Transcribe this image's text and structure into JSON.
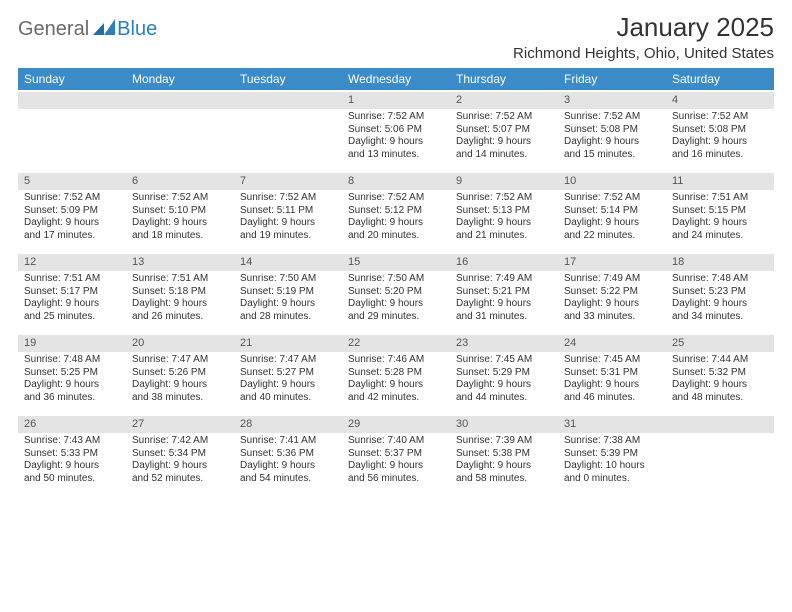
{
  "brand": {
    "text_general": "General",
    "text_blue": "Blue",
    "flag_bg": "#2a7fbf"
  },
  "header": {
    "title": "January 2025",
    "location": "Richmond Heights, Ohio, United States"
  },
  "calendar": {
    "header_bg": "#3b8bc8",
    "header_text_color": "#ffffff",
    "daynum_bg": "#e4e4e4",
    "cell_text_color": "#333333",
    "background": "#ffffff",
    "font_size_header": 12,
    "font_size_body": 10,
    "day_names": [
      "Sunday",
      "Monday",
      "Tuesday",
      "Wednesday",
      "Thursday",
      "Friday",
      "Saturday"
    ],
    "weeks": [
      [
        {
          "empty": true
        },
        {
          "empty": true
        },
        {
          "empty": true
        },
        {
          "num": "1",
          "l1": "Sunrise: 7:52 AM",
          "l2": "Sunset: 5:06 PM",
          "l3": "Daylight: 9 hours",
          "l4": "and 13 minutes."
        },
        {
          "num": "2",
          "l1": "Sunrise: 7:52 AM",
          "l2": "Sunset: 5:07 PM",
          "l3": "Daylight: 9 hours",
          "l4": "and 14 minutes."
        },
        {
          "num": "3",
          "l1": "Sunrise: 7:52 AM",
          "l2": "Sunset: 5:08 PM",
          "l3": "Daylight: 9 hours",
          "l4": "and 15 minutes."
        },
        {
          "num": "4",
          "l1": "Sunrise: 7:52 AM",
          "l2": "Sunset: 5:08 PM",
          "l3": "Daylight: 9 hours",
          "l4": "and 16 minutes."
        }
      ],
      [
        {
          "num": "5",
          "l1": "Sunrise: 7:52 AM",
          "l2": "Sunset: 5:09 PM",
          "l3": "Daylight: 9 hours",
          "l4": "and 17 minutes."
        },
        {
          "num": "6",
          "l1": "Sunrise: 7:52 AM",
          "l2": "Sunset: 5:10 PM",
          "l3": "Daylight: 9 hours",
          "l4": "and 18 minutes."
        },
        {
          "num": "7",
          "l1": "Sunrise: 7:52 AM",
          "l2": "Sunset: 5:11 PM",
          "l3": "Daylight: 9 hours",
          "l4": "and 19 minutes."
        },
        {
          "num": "8",
          "l1": "Sunrise: 7:52 AM",
          "l2": "Sunset: 5:12 PM",
          "l3": "Daylight: 9 hours",
          "l4": "and 20 minutes."
        },
        {
          "num": "9",
          "l1": "Sunrise: 7:52 AM",
          "l2": "Sunset: 5:13 PM",
          "l3": "Daylight: 9 hours",
          "l4": "and 21 minutes."
        },
        {
          "num": "10",
          "l1": "Sunrise: 7:52 AM",
          "l2": "Sunset: 5:14 PM",
          "l3": "Daylight: 9 hours",
          "l4": "and 22 minutes."
        },
        {
          "num": "11",
          "l1": "Sunrise: 7:51 AM",
          "l2": "Sunset: 5:15 PM",
          "l3": "Daylight: 9 hours",
          "l4": "and 24 minutes."
        }
      ],
      [
        {
          "num": "12",
          "l1": "Sunrise: 7:51 AM",
          "l2": "Sunset: 5:17 PM",
          "l3": "Daylight: 9 hours",
          "l4": "and 25 minutes."
        },
        {
          "num": "13",
          "l1": "Sunrise: 7:51 AM",
          "l2": "Sunset: 5:18 PM",
          "l3": "Daylight: 9 hours",
          "l4": "and 26 minutes."
        },
        {
          "num": "14",
          "l1": "Sunrise: 7:50 AM",
          "l2": "Sunset: 5:19 PM",
          "l3": "Daylight: 9 hours",
          "l4": "and 28 minutes."
        },
        {
          "num": "15",
          "l1": "Sunrise: 7:50 AM",
          "l2": "Sunset: 5:20 PM",
          "l3": "Daylight: 9 hours",
          "l4": "and 29 minutes."
        },
        {
          "num": "16",
          "l1": "Sunrise: 7:49 AM",
          "l2": "Sunset: 5:21 PM",
          "l3": "Daylight: 9 hours",
          "l4": "and 31 minutes."
        },
        {
          "num": "17",
          "l1": "Sunrise: 7:49 AM",
          "l2": "Sunset: 5:22 PM",
          "l3": "Daylight: 9 hours",
          "l4": "and 33 minutes."
        },
        {
          "num": "18",
          "l1": "Sunrise: 7:48 AM",
          "l2": "Sunset: 5:23 PM",
          "l3": "Daylight: 9 hours",
          "l4": "and 34 minutes."
        }
      ],
      [
        {
          "num": "19",
          "l1": "Sunrise: 7:48 AM",
          "l2": "Sunset: 5:25 PM",
          "l3": "Daylight: 9 hours",
          "l4": "and 36 minutes."
        },
        {
          "num": "20",
          "l1": "Sunrise: 7:47 AM",
          "l2": "Sunset: 5:26 PM",
          "l3": "Daylight: 9 hours",
          "l4": "and 38 minutes."
        },
        {
          "num": "21",
          "l1": "Sunrise: 7:47 AM",
          "l2": "Sunset: 5:27 PM",
          "l3": "Daylight: 9 hours",
          "l4": "and 40 minutes."
        },
        {
          "num": "22",
          "l1": "Sunrise: 7:46 AM",
          "l2": "Sunset: 5:28 PM",
          "l3": "Daylight: 9 hours",
          "l4": "and 42 minutes."
        },
        {
          "num": "23",
          "l1": "Sunrise: 7:45 AM",
          "l2": "Sunset: 5:29 PM",
          "l3": "Daylight: 9 hours",
          "l4": "and 44 minutes."
        },
        {
          "num": "24",
          "l1": "Sunrise: 7:45 AM",
          "l2": "Sunset: 5:31 PM",
          "l3": "Daylight: 9 hours",
          "l4": "and 46 minutes."
        },
        {
          "num": "25",
          "l1": "Sunrise: 7:44 AM",
          "l2": "Sunset: 5:32 PM",
          "l3": "Daylight: 9 hours",
          "l4": "and 48 minutes."
        }
      ],
      [
        {
          "num": "26",
          "l1": "Sunrise: 7:43 AM",
          "l2": "Sunset: 5:33 PM",
          "l3": "Daylight: 9 hours",
          "l4": "and 50 minutes."
        },
        {
          "num": "27",
          "l1": "Sunrise: 7:42 AM",
          "l2": "Sunset: 5:34 PM",
          "l3": "Daylight: 9 hours",
          "l4": "and 52 minutes."
        },
        {
          "num": "28",
          "l1": "Sunrise: 7:41 AM",
          "l2": "Sunset: 5:36 PM",
          "l3": "Daylight: 9 hours",
          "l4": "and 54 minutes."
        },
        {
          "num": "29",
          "l1": "Sunrise: 7:40 AM",
          "l2": "Sunset: 5:37 PM",
          "l3": "Daylight: 9 hours",
          "l4": "and 56 minutes."
        },
        {
          "num": "30",
          "l1": "Sunrise: 7:39 AM",
          "l2": "Sunset: 5:38 PM",
          "l3": "Daylight: 9 hours",
          "l4": "and 58 minutes."
        },
        {
          "num": "31",
          "l1": "Sunrise: 7:38 AM",
          "l2": "Sunset: 5:39 PM",
          "l3": "Daylight: 10 hours",
          "l4": "and 0 minutes."
        },
        {
          "empty": true
        }
      ]
    ]
  }
}
